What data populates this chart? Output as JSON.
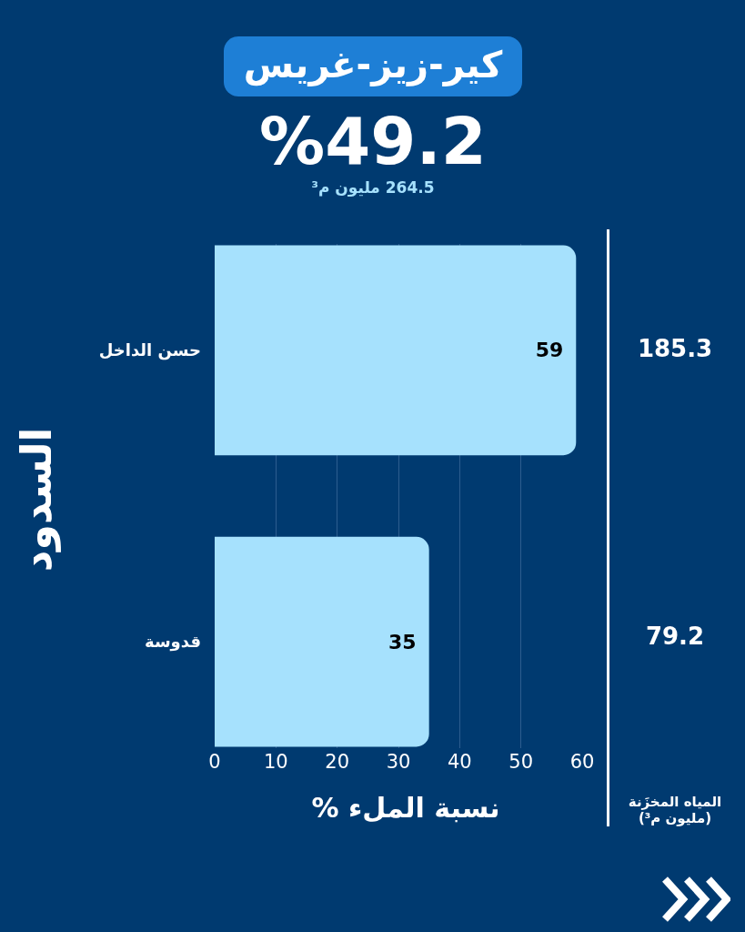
{
  "chart_data": {
    "type": "bar",
    "orientation": "horizontal",
    "title": "كير-زيز-غريس",
    "subtitle": "%49.2",
    "xlabel": "نسبة الملء %",
    "ylabel": "السدود",
    "categories": [
      "حسن الداخل",
      "قدوسة"
    ],
    "values": [
      59,
      35
    ],
    "color": "#a6e1fd",
    "data_labels": true,
    "xlim": [
      0,
      60
    ],
    "xticks": [
      0,
      10,
      20,
      30,
      40,
      50,
      60
    ],
    "grid": "x",
    "annotations": [
      "264.5 مليون م³",
      "185.3",
      "79.2",
      "المياه المخزَنة (مليون م³)"
    ]
  }
}
